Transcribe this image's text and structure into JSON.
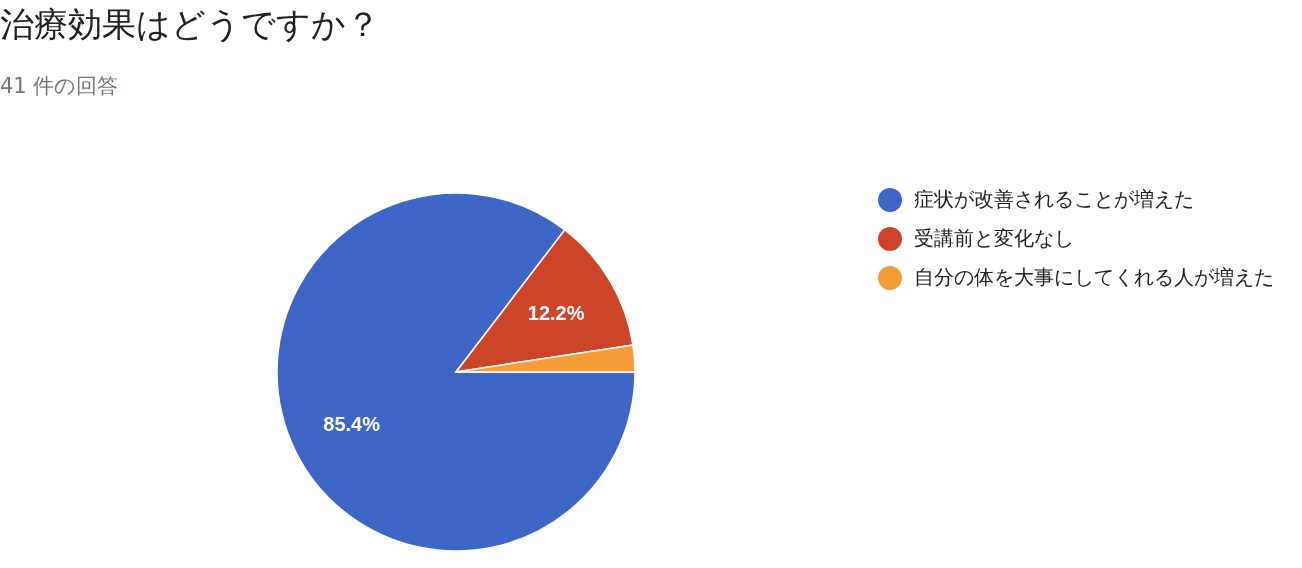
{
  "chart_data": {
    "type": "pie",
    "title": "治療効果はどうですか？",
    "subtitle": "41 件の回答",
    "categories": [
      "症状が改善されることが増えた",
      "受講前と変化なし",
      "自分の体を大事にしてくれる人が増えた"
    ],
    "values": [
      85.4,
      12.2,
      2.4
    ],
    "colors": [
      "#3d66c6",
      "#cc4528",
      "#f49d37"
    ],
    "value_labels": [
      "85.4%",
      "12.2%",
      null
    ],
    "legend": "right"
  }
}
